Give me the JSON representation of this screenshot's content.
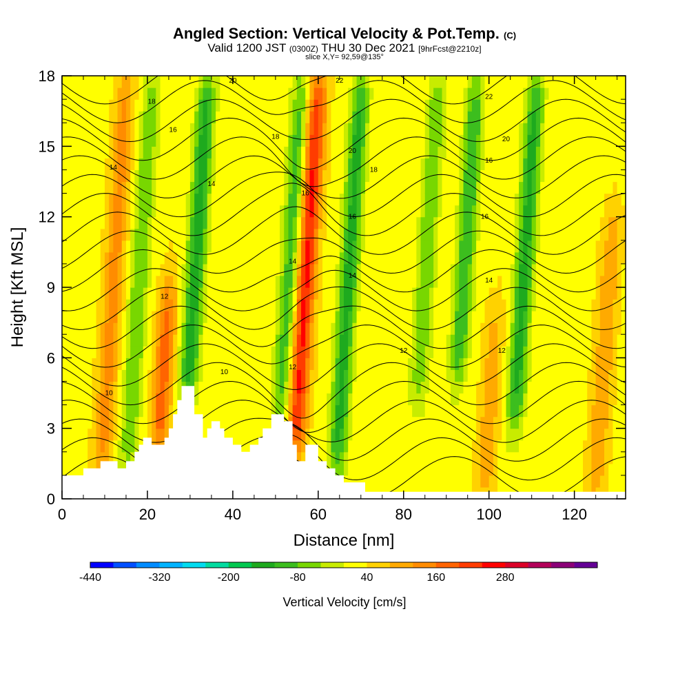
{
  "header": {
    "title": "Angled Section: Vertical Velocity & Pot.Temp.",
    "title_suffix": "(C)",
    "valid_prefix": "Valid 1200 JST",
    "valid_utc": "(0300Z)",
    "valid_date": "THU 30 Dec 2021",
    "forecast": "[9hrFcst@2210z]",
    "slice": "slice X,Y= 92,59@135°"
  },
  "chart_data": {
    "type": "heatmap",
    "xlabel": "Distance [nm]",
    "ylabel": "Height [Kft MSL]",
    "xlim": [
      0,
      132
    ],
    "ylim": [
      0,
      18
    ],
    "x_ticks": [
      "0",
      "20",
      "40",
      "60",
      "80",
      "100",
      "120"
    ],
    "y_ticks": [
      "0",
      "3",
      "6",
      "9",
      "12",
      "15",
      "18"
    ],
    "colorbar": {
      "label": "Vertical Velocity [cm/s]",
      "tick_labels": [
        "-440",
        "-320",
        "-200",
        "-80",
        "40",
        "160",
        "280"
      ],
      "tick_values": [
        -440,
        -320,
        -200,
        -80,
        40,
        160,
        280
      ],
      "min": -440,
      "step": 40,
      "colors": [
        "#0000ff",
        "#0050ff",
        "#008cff",
        "#00b4ff",
        "#00dcf0",
        "#00dca0",
        "#00c850",
        "#1eaa1e",
        "#3cbe1e",
        "#78d700",
        "#c8ec00",
        "#ffff00",
        "#ffd200",
        "#ffaa00",
        "#ff8c00",
        "#ff6400",
        "#ff3c00",
        "#ff0000",
        "#dc0028",
        "#b4005a",
        "#8c0078",
        "#640096"
      ]
    },
    "terrain_kft": [
      [
        0,
        1
      ],
      [
        5,
        1
      ],
      [
        5,
        1.3
      ],
      [
        9,
        1.3
      ],
      [
        9,
        1.6
      ],
      [
        13,
        1.6
      ],
      [
        13,
        1.3
      ],
      [
        15,
        1.3
      ],
      [
        15,
        1.6
      ],
      [
        17,
        1.6
      ],
      [
        17,
        2
      ],
      [
        18,
        2
      ],
      [
        18,
        2.3
      ],
      [
        19,
        2.3
      ],
      [
        19,
        2.6
      ],
      [
        21,
        2.6
      ],
      [
        21,
        2.3
      ],
      [
        24,
        2.3
      ],
      [
        24,
        2.6
      ],
      [
        25,
        2.6
      ],
      [
        25,
        3
      ],
      [
        26,
        3
      ],
      [
        26,
        3.6
      ],
      [
        27,
        3.6
      ],
      [
        27,
        4.2
      ],
      [
        28,
        4.2
      ],
      [
        28,
        4.8
      ],
      [
        31,
        4.8
      ],
      [
        31,
        3.6
      ],
      [
        33,
        3.6
      ],
      [
        33,
        2.6
      ],
      [
        34,
        2.6
      ],
      [
        34,
        3
      ],
      [
        35,
        3
      ],
      [
        35,
        3.3
      ],
      [
        37,
        3.3
      ],
      [
        37,
        3
      ],
      [
        38,
        3
      ],
      [
        38,
        2.6
      ],
      [
        40,
        2.6
      ],
      [
        40,
        2.3
      ],
      [
        42,
        2.3
      ],
      [
        42,
        2
      ],
      [
        44,
        2
      ],
      [
        44,
        2.3
      ],
      [
        46,
        2.3
      ],
      [
        46,
        2.6
      ],
      [
        47,
        2.6
      ],
      [
        47,
        3
      ],
      [
        49,
        3
      ],
      [
        49,
        3.6
      ],
      [
        52,
        3.6
      ],
      [
        52,
        3.3
      ],
      [
        54,
        3.3
      ],
      [
        54,
        2.3
      ],
      [
        55,
        2.3
      ],
      [
        55,
        1.6
      ],
      [
        57,
        1.6
      ],
      [
        57,
        2.3
      ],
      [
        60,
        2.3
      ],
      [
        60,
        1.6
      ],
      [
        62,
        1.6
      ],
      [
        62,
        1.3
      ],
      [
        64,
        1.3
      ],
      [
        64,
        1
      ],
      [
        66,
        1
      ],
      [
        66,
        0.7
      ],
      [
        71,
        0.7
      ],
      [
        71,
        0.3
      ],
      [
        132,
        0.3
      ]
    ],
    "vertical_velocity_features": [
      {
        "center_km": 12,
        "base_kft": 1,
        "top_kft": 18,
        "peak_cms": 110
      },
      {
        "center_km": 18,
        "base_kft": 1,
        "top_kft": 18,
        "peak_cms": -110
      },
      {
        "center_km": 25,
        "base_kft": 2,
        "top_kft": 9,
        "peak_cms": 160
      },
      {
        "center_km": 31,
        "base_kft": 4,
        "top_kft": 18,
        "peak_cms": -180
      },
      {
        "center_km": 53,
        "base_kft": 3,
        "top_kft": 18,
        "peak_cms": -130
      },
      {
        "center_km": 57,
        "base_kft": 2,
        "top_kft": 18,
        "peak_cms": 220
      },
      {
        "center_km": 67,
        "base_kft": 1,
        "top_kft": 18,
        "peak_cms": -170
      },
      {
        "center_km": 85,
        "base_kft": 4,
        "top_kft": 18,
        "peak_cms": -110
      },
      {
        "center_km": 94,
        "base_kft": 5,
        "top_kft": 18,
        "peak_cms": -150
      },
      {
        "center_km": 102,
        "base_kft": 0,
        "top_kft": 8,
        "peak_cms": 80
      },
      {
        "center_km": 108,
        "base_kft": 3,
        "top_kft": 18,
        "peak_cms": -170
      },
      {
        "center_km": 128,
        "base_kft": 0,
        "top_kft": 12,
        "peak_cms": 90
      }
    ],
    "theta_contours": [
      {
        "label": "10",
        "level_kft": 4.5,
        "label_x": 11
      },
      {
        "label": "10",
        "level_kft": 5.4,
        "label_x": 38
      },
      {
        "label": "12",
        "level_kft": 8.6,
        "label_x": 24
      },
      {
        "label": "12",
        "level_kft": 6.3,
        "label_x": 80
      },
      {
        "label": "12",
        "level_kft": 6.3,
        "label_x": 103
      },
      {
        "label": "12",
        "level_kft": 5.6,
        "label_x": 54
      },
      {
        "label": "14",
        "level_kft": 14.1,
        "label_x": 12
      },
      {
        "label": "14",
        "level_kft": 13.4,
        "label_x": 35
      },
      {
        "label": "14",
        "level_kft": 10.1,
        "label_x": 54
      },
      {
        "label": "14",
        "level_kft": 9.5,
        "label_x": 68
      },
      {
        "label": "14",
        "level_kft": 9.3,
        "label_x": 100
      },
      {
        "label": "16",
        "level_kft": 15.7,
        "label_x": 26
      },
      {
        "label": "16",
        "level_kft": 13.0,
        "label_x": 57
      },
      {
        "label": "16",
        "level_kft": 12.0,
        "label_x": 68
      },
      {
        "label": "16",
        "level_kft": 12.0,
        "label_x": 99
      },
      {
        "label": "16",
        "level_kft": 14.4,
        "label_x": 100
      },
      {
        "label": "18",
        "level_kft": 16.9,
        "label_x": 21
      },
      {
        "label": "18",
        "level_kft": 15.4,
        "label_x": 50
      },
      {
        "label": "18",
        "level_kft": 14.0,
        "label_x": 73
      },
      {
        "label": "20",
        "level_kft": 17.8,
        "label_x": 40
      },
      {
        "label": "20",
        "level_kft": 14.8,
        "label_x": 68
      },
      {
        "label": "20",
        "level_kft": 15.3,
        "label_x": 104
      },
      {
        "label": "22",
        "level_kft": 17.8,
        "label_x": 65
      },
      {
        "label": "22",
        "level_kft": 17.1,
        "label_x": 100
      }
    ]
  }
}
